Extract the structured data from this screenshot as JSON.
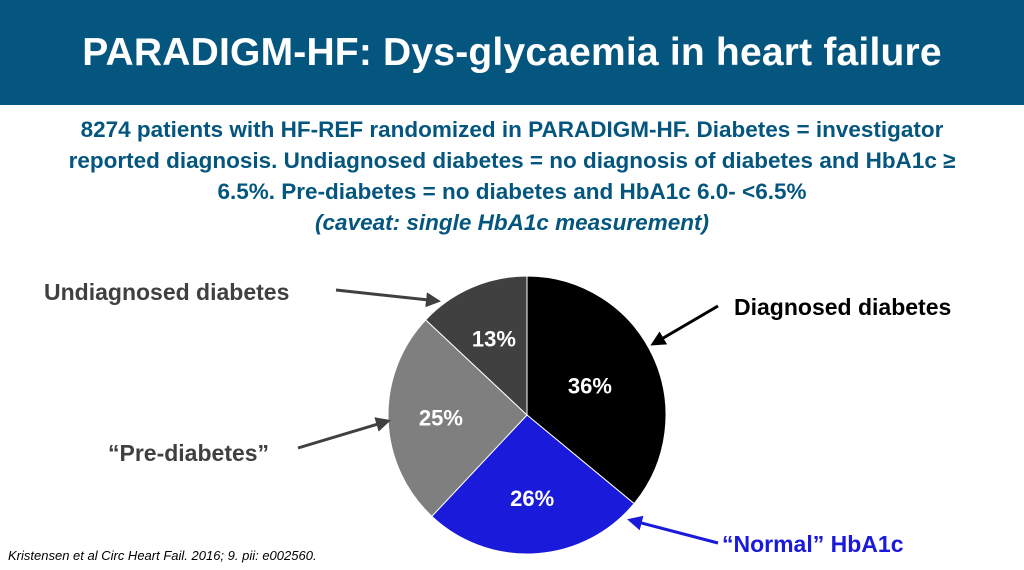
{
  "header": {
    "title": "PARADIGM-HF: Dys-glycaemia in heart failure"
  },
  "description": {
    "line1": "8274 patients with HF-REF randomized in PARADIGM-HF. Diabetes = investigator",
    "line2": "reported diagnosis. Undiagnosed diabetes = no diagnosis of diabetes and HbA1c ≥",
    "line3": "6.5%. Pre-diabetes = no diabetes and HbA1c 6.0- <6.5%",
    "caveat": "(caveat: single HbA1c measurement)"
  },
  "colors": {
    "header_bg": "#04567f",
    "subtitle_text": "#04567f",
    "label_gray": "#404040",
    "normal_blue": "#1a1adb"
  },
  "chart_data": {
    "type": "pie",
    "start": "12 o'clock",
    "direction": "clockwise",
    "slices": [
      {
        "label": "Diagnosed diabetes",
        "value": 36,
        "value_label": "36%",
        "color": "#000000",
        "label_color": "#000000",
        "arrow_color": "#000000"
      },
      {
        "label": "“Normal” HbA1c",
        "value": 26,
        "value_label": "26%",
        "color": "#1a1adb",
        "label_color": "#1a1adb",
        "arrow_color": "#1a1adb"
      },
      {
        "label": "“Pre-diabetes”",
        "value": 25,
        "value_label": "25%",
        "color": "#7f7f7f",
        "label_color": "#404040",
        "arrow_color": "#404040"
      },
      {
        "label": "Undiagnosed diabetes",
        "value": 13,
        "value_label": "13%",
        "color": "#404040",
        "label_color": "#404040",
        "arrow_color": "#404040"
      }
    ]
  },
  "citation": "Kristensen et al Circ Heart Fail. 2016; 9. pii: e002560."
}
